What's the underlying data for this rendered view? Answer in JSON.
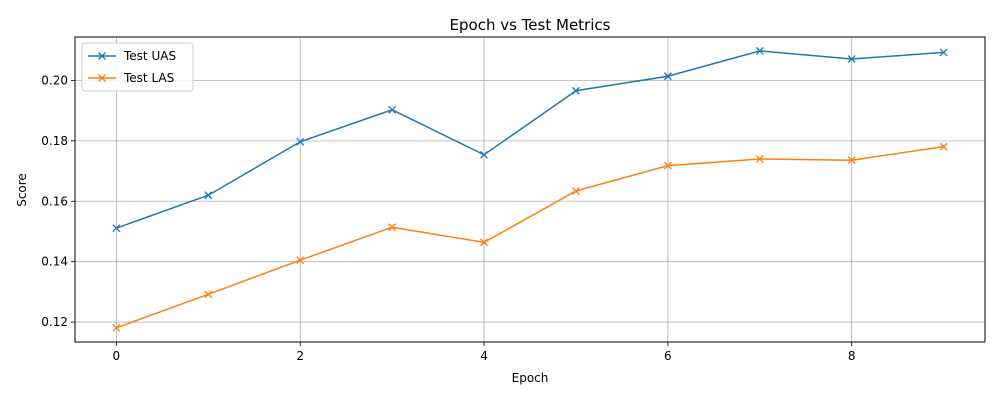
{
  "chart_data": {
    "type": "line",
    "title": "Epoch vs Test Metrics",
    "xlabel": "Epoch",
    "ylabel": "Score",
    "x": [
      0,
      1,
      2,
      3,
      4,
      5,
      6,
      7,
      8,
      9
    ],
    "xlim": [
      -0.45,
      9.45
    ],
    "ylim": [
      0.1134,
      0.2144
    ],
    "xticks": [
      0,
      2,
      4,
      6,
      8
    ],
    "xtick_labels": [
      "0",
      "2",
      "4",
      "6",
      "8"
    ],
    "yticks": [
      0.12,
      0.14,
      0.16,
      0.18,
      0.2
    ],
    "ytick_labels": [
      "0.12",
      "0.14",
      "0.16",
      "0.18",
      "0.20"
    ],
    "grid": true,
    "legend_position": "top-left",
    "marker": "x",
    "series": [
      {
        "name": "Test UAS",
        "color": "#1f77b4",
        "values": [
          0.1511,
          0.162,
          0.1797,
          0.1903,
          0.1754,
          0.1966,
          0.2014,
          0.2098,
          0.2071,
          0.2093
        ]
      },
      {
        "name": "Test LAS",
        "color": "#ff7f0e",
        "values": [
          0.1181,
          0.1292,
          0.1405,
          0.1514,
          0.1464,
          0.1634,
          0.1718,
          0.174,
          0.1736,
          0.1781
        ]
      }
    ]
  }
}
